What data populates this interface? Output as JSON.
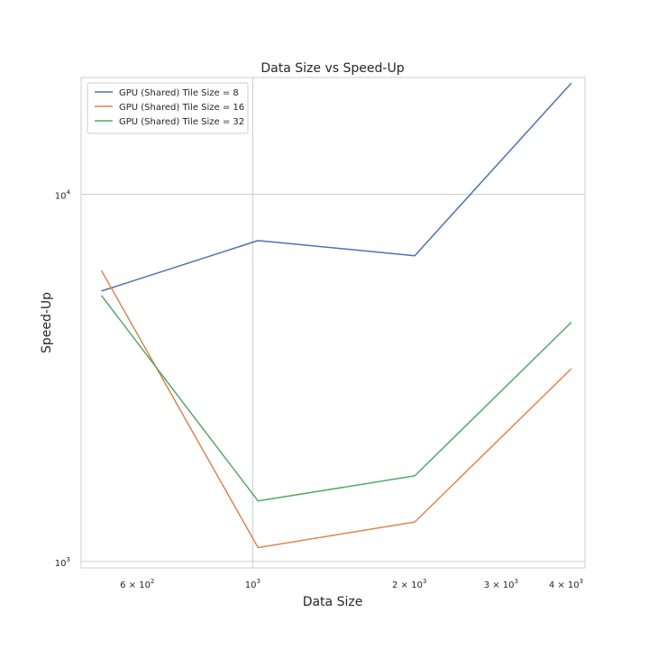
{
  "chart_data": {
    "type": "line",
    "title": "Data Size vs Speed-Up",
    "xlabel": "Data Size",
    "ylabel": "Speed-Up",
    "xscale": "log",
    "yscale": "log",
    "xlim": [
      468,
      4350
    ],
    "ylim": [
      960,
      20800
    ],
    "grid": true,
    "legend_position": "top-left",
    "x": [
      512,
      1024,
      2048,
      4096
    ],
    "series": [
      {
        "name": "GPU (Shared) Tile Size = 8",
        "color": "#4c72b0",
        "values": [
          5450,
          7480,
          6800,
          20100
        ]
      },
      {
        "name": "GPU (Shared) Tile Size = 16",
        "color": "#dd8452",
        "values": [
          6200,
          1090,
          1280,
          3350
        ]
      },
      {
        "name": "GPU (Shared) Tile Size = 32",
        "color": "#55a868",
        "values": [
          5300,
          1460,
          1710,
          4480
        ]
      }
    ],
    "xticks": [
      {
        "value": 600,
        "base": "6 × 10",
        "exp": "2"
      },
      {
        "value": 1000,
        "base": "10",
        "exp": "3"
      },
      {
        "value": 2000,
        "base": "2 × 10",
        "exp": "3"
      },
      {
        "value": 3000,
        "base": "3 × 10",
        "exp": "3"
      },
      {
        "value": 4000,
        "base": "4 × 10",
        "exp": "3"
      }
    ],
    "yticks": [
      {
        "value": 1000,
        "base": "10",
        "exp": "3"
      },
      {
        "value": 10000,
        "base": "10",
        "exp": "4"
      }
    ]
  }
}
